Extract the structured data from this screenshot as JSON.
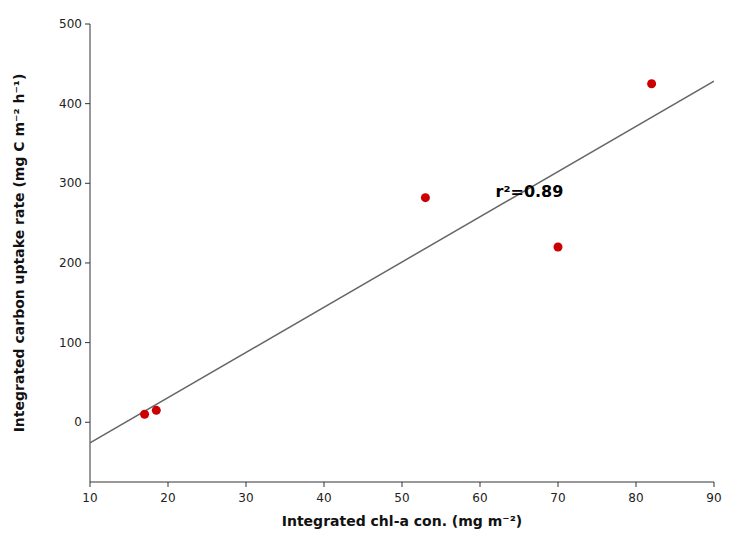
{
  "chart_data": {
    "type": "scatter",
    "xlabel": "Integrated chl-a con. (mg m⁻²)",
    "ylabel": "Integrated carbon uptake rate (mg C m⁻² h⁻¹)",
    "xlim": [
      10,
      90
    ],
    "ylim": [
      -75,
      500
    ],
    "xticks": [
      10,
      20,
      30,
      40,
      50,
      60,
      70,
      80,
      90
    ],
    "yticks": [
      0,
      100,
      200,
      300,
      400,
      500
    ],
    "series": [
      {
        "type": "scatter",
        "color": "#cc0000",
        "marker": "circle",
        "x": [
          17,
          18.5,
          53,
          70,
          82
        ],
        "values": [
          10,
          15,
          282,
          220,
          425
        ]
      },
      {
        "type": "line",
        "color": "#666666",
        "x": [
          10,
          90
        ],
        "values": [
          -25.941,
          428.319
        ]
      }
    ],
    "annotations": [
      {
        "text": "r²=0.89",
        "x": 62,
        "y": 283
      }
    ]
  }
}
